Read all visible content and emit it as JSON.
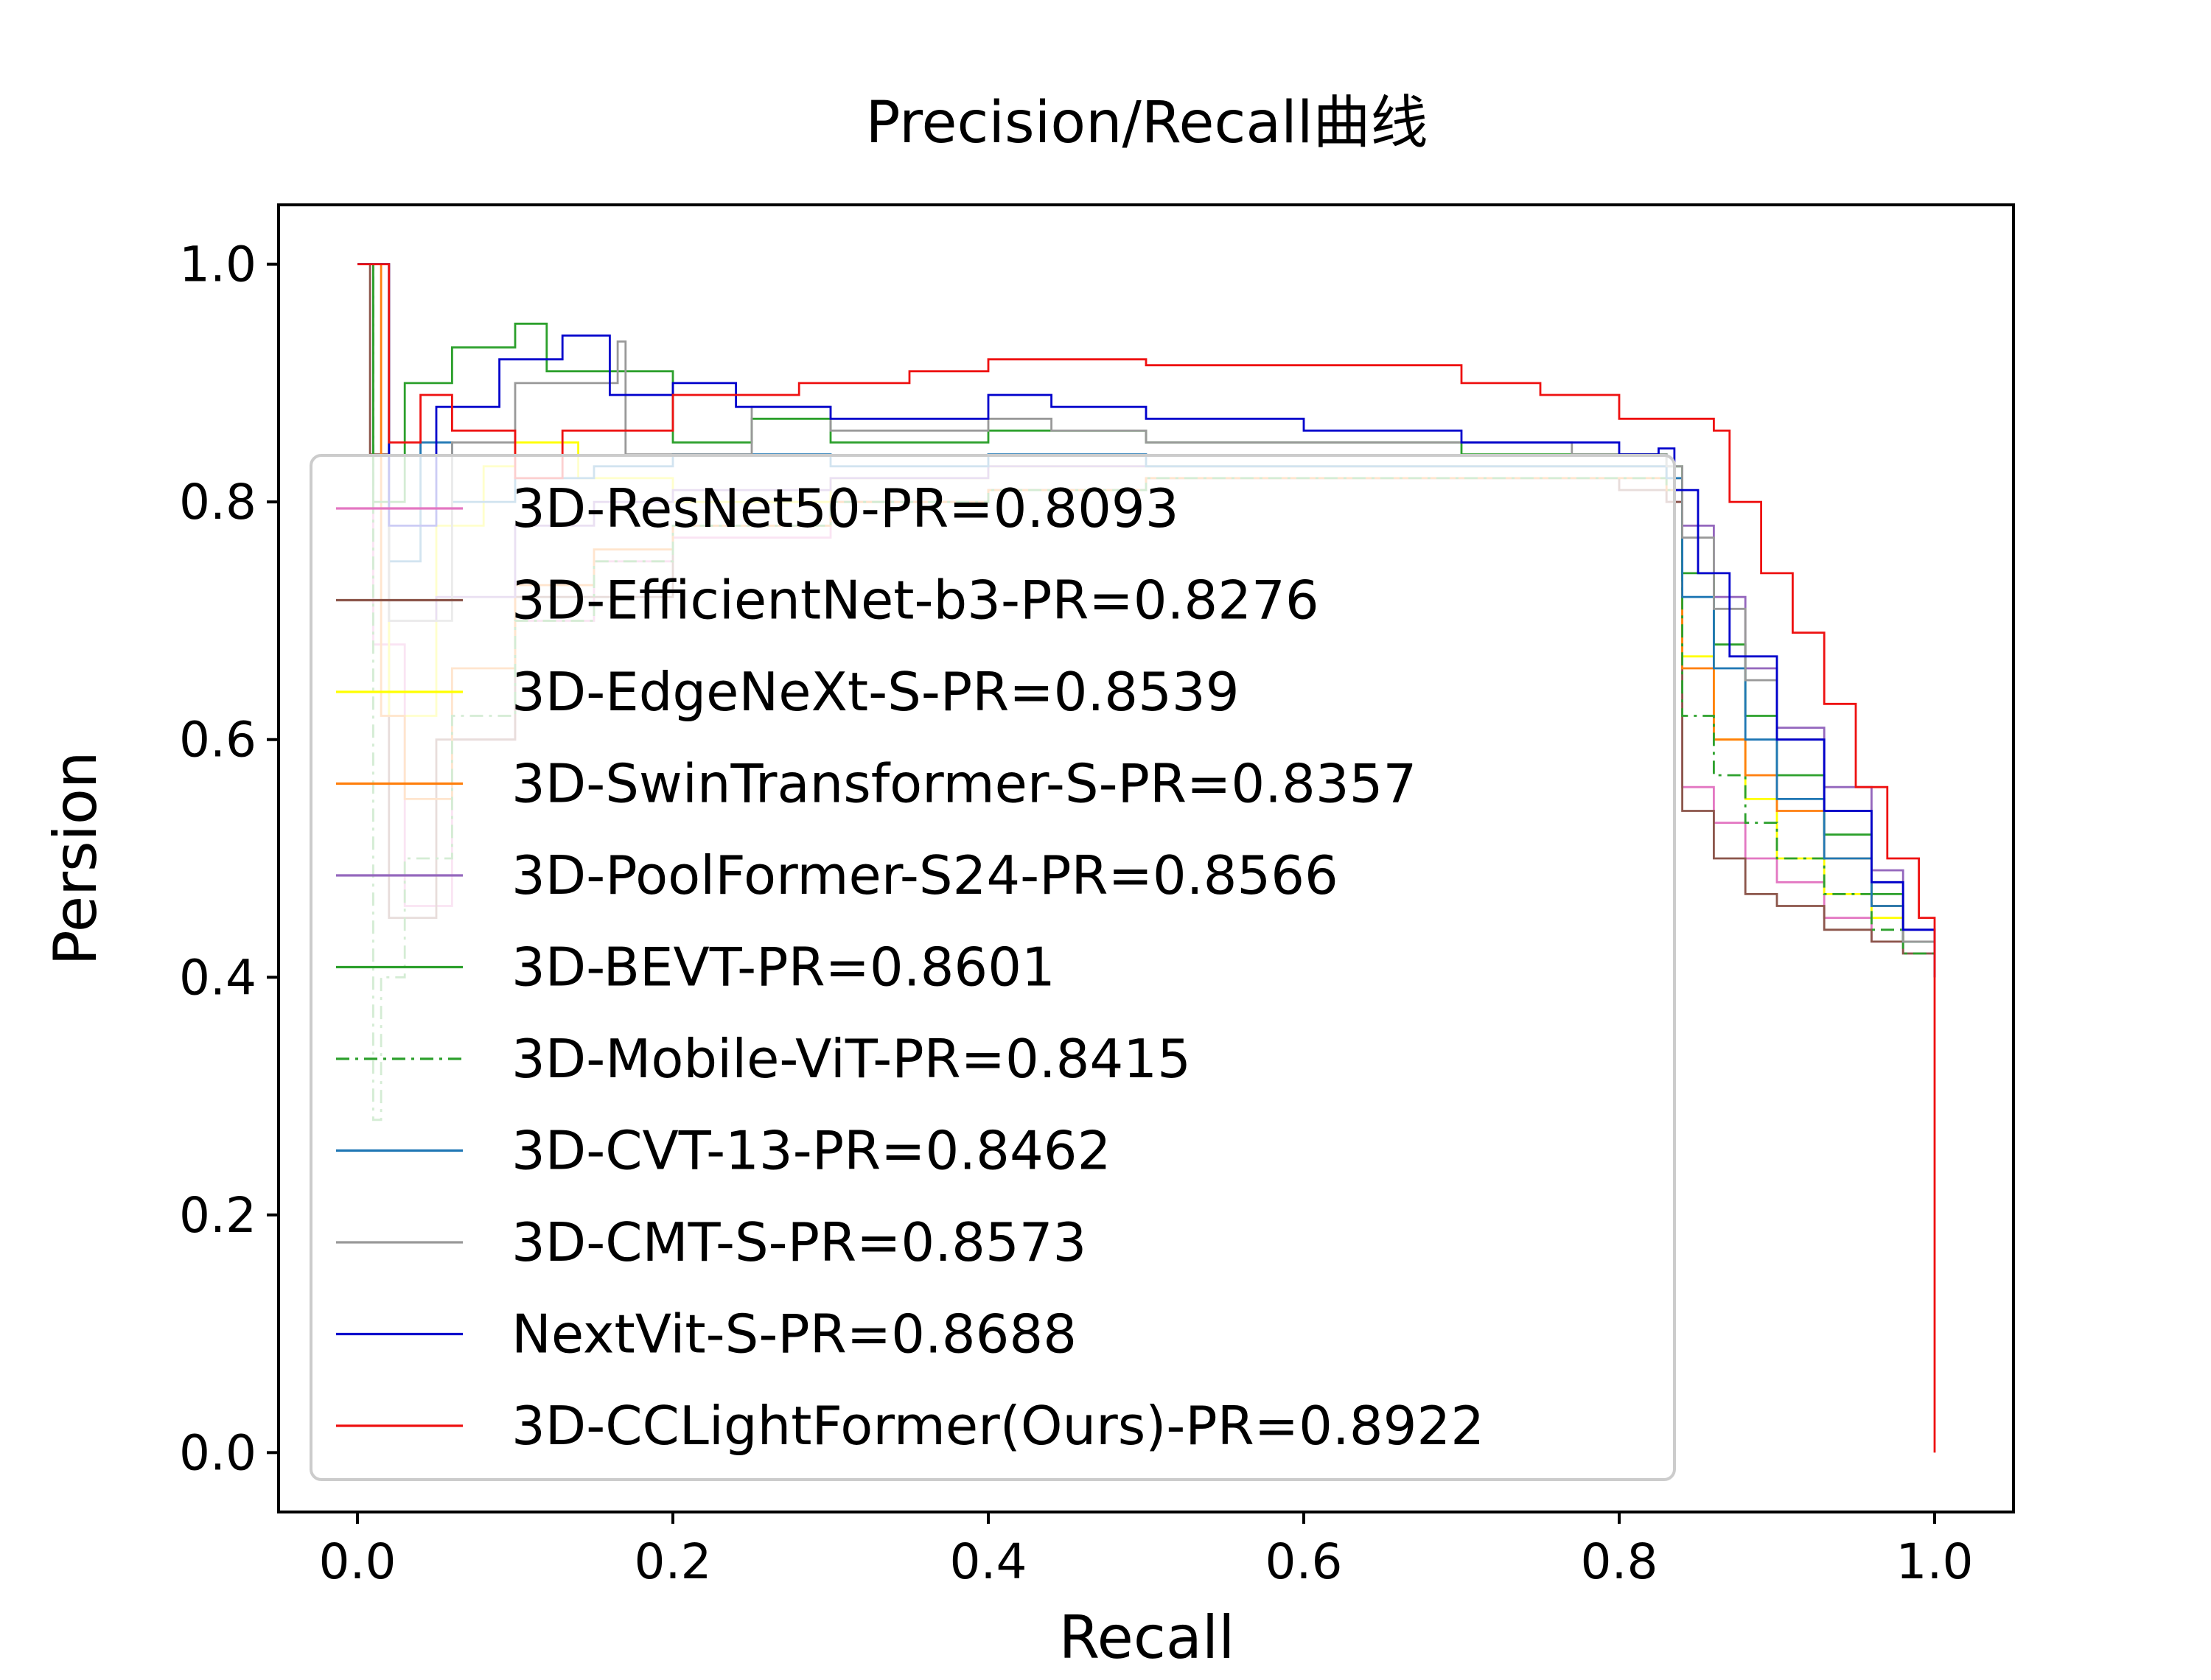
{
  "chart_data": {
    "type": "line",
    "title": "Precision/Recall曲线",
    "xlabel": "Recall",
    "ylabel": "Persion",
    "xlim": [
      -0.05,
      1.05
    ],
    "ylim": [
      -0.05,
      1.05
    ],
    "xticks": [
      0.0,
      0.2,
      0.4,
      0.6,
      0.8,
      1.0
    ],
    "yticks": [
      0.0,
      0.2,
      0.4,
      0.6,
      0.8,
      1.0
    ],
    "xtick_labels": [
      "0.0",
      "0.2",
      "0.4",
      "0.6",
      "0.8",
      "1.0"
    ],
    "ytick_labels": [
      "0.0",
      "0.2",
      "0.4",
      "0.6",
      "0.8",
      "1.0"
    ],
    "grid": false,
    "legend_position": "center-left",
    "series": [
      {
        "name": "3D-ResNet50-PR=0.8093",
        "color": "#e377c2",
        "dash": "solid",
        "x": [
          0.0,
          0.004,
          0.01,
          0.03,
          0.06,
          0.1,
          0.15,
          0.2,
          0.3,
          0.4,
          0.5,
          0.6,
          0.7,
          0.75,
          0.8,
          0.83,
          0.84,
          0.86,
          0.88,
          0.9,
          0.93,
          0.96,
          0.98,
          1.0
        ],
        "y": [
          1.0,
          1.0,
          0.68,
          0.46,
          0.6,
          0.7,
          0.75,
          0.77,
          0.8,
          0.81,
          0.82,
          0.82,
          0.82,
          0.82,
          0.81,
          0.8,
          0.56,
          0.53,
          0.5,
          0.48,
          0.45,
          0.43,
          0.42,
          0.4
        ]
      },
      {
        "name": "3D-EfficientNet-b3-PR=0.8276",
        "color": "#8c564b",
        "dash": "solid",
        "x": [
          0.0,
          0.002,
          0.008,
          0.02,
          0.05,
          0.1,
          0.2,
          0.3,
          0.4,
          0.5,
          0.6,
          0.7,
          0.75,
          0.8,
          0.83,
          0.84,
          0.86,
          0.88,
          0.9,
          0.93,
          0.96,
          0.98,
          1.0
        ],
        "y": [
          1.0,
          1.0,
          0.84,
          0.45,
          0.6,
          0.72,
          0.78,
          0.8,
          0.81,
          0.82,
          0.82,
          0.82,
          0.82,
          0.81,
          0.8,
          0.54,
          0.5,
          0.47,
          0.46,
          0.44,
          0.43,
          0.42,
          0.4
        ]
      },
      {
        "name": "3D-EdgeNeXt-S-PR=0.8539",
        "color": "#ffff00",
        "dash": "solid",
        "x": [
          0.0,
          0.01,
          0.02,
          0.05,
          0.08,
          0.1,
          0.14,
          0.2,
          0.3,
          0.4,
          0.5,
          0.6,
          0.7,
          0.8,
          0.83,
          0.84,
          0.86,
          0.88,
          0.9,
          0.93,
          0.96,
          0.98,
          1.0
        ],
        "y": [
          1.0,
          1.0,
          0.62,
          0.78,
          0.83,
          0.85,
          0.82,
          0.8,
          0.82,
          0.83,
          0.83,
          0.83,
          0.83,
          0.83,
          0.82,
          0.67,
          0.6,
          0.55,
          0.5,
          0.47,
          0.45,
          0.43,
          0.4
        ]
      },
      {
        "name": "3D-SwinTransformer-S-PR=0.8357",
        "color": "#ff7f0e",
        "dash": "solid",
        "x": [
          0.0,
          0.006,
          0.015,
          0.03,
          0.06,
          0.1,
          0.15,
          0.2,
          0.3,
          0.4,
          0.5,
          0.6,
          0.7,
          0.8,
          0.83,
          0.84,
          0.86,
          0.88,
          0.9,
          0.93,
          0.96,
          0.98,
          1.0
        ],
        "y": [
          1.0,
          1.0,
          0.62,
          0.55,
          0.66,
          0.73,
          0.76,
          0.78,
          0.8,
          0.81,
          0.82,
          0.82,
          0.82,
          0.82,
          0.81,
          0.66,
          0.6,
          0.57,
          0.54,
          0.5,
          0.46,
          0.43,
          0.4
        ]
      },
      {
        "name": "3D-PoolFormer-S24-PR=0.8566",
        "color": "#9467bd",
        "dash": "solid",
        "x": [
          0.0,
          0.01,
          0.02,
          0.05,
          0.1,
          0.15,
          0.2,
          0.3,
          0.4,
          0.5,
          0.6,
          0.7,
          0.8,
          0.83,
          0.84,
          0.86,
          0.88,
          0.9,
          0.93,
          0.96,
          0.98,
          1.0
        ],
        "y": [
          1.0,
          1.0,
          0.7,
          0.72,
          0.78,
          0.8,
          0.81,
          0.82,
          0.83,
          0.83,
          0.83,
          0.83,
          0.83,
          0.82,
          0.78,
          0.72,
          0.66,
          0.61,
          0.56,
          0.49,
          0.44,
          0.4
        ]
      },
      {
        "name": "3D-BEVT-PR=0.8601",
        "color": "#2ca02c",
        "dash": "solid",
        "x": [
          0.0,
          0.004,
          0.01,
          0.03,
          0.06,
          0.1,
          0.12,
          0.2,
          0.25,
          0.3,
          0.4,
          0.5,
          0.6,
          0.7,
          0.8,
          0.83,
          0.84,
          0.86,
          0.88,
          0.9,
          0.93,
          0.96,
          0.98,
          1.0
        ],
        "y": [
          1.0,
          1.0,
          0.8,
          0.9,
          0.93,
          0.95,
          0.91,
          0.85,
          0.87,
          0.85,
          0.86,
          0.85,
          0.85,
          0.84,
          0.84,
          0.83,
          0.74,
          0.68,
          0.62,
          0.57,
          0.52,
          0.47,
          0.43,
          0.4
        ]
      },
      {
        "name": "3D-Mobile-ViT-PR=0.8415",
        "color": "#2ca02c",
        "dash": "dashdot",
        "x": [
          0.0,
          0.005,
          0.01,
          0.015,
          0.03,
          0.06,
          0.1,
          0.15,
          0.2,
          0.3,
          0.4,
          0.5,
          0.6,
          0.7,
          0.8,
          0.83,
          0.84,
          0.86,
          0.88,
          0.9,
          0.93,
          0.96,
          0.98,
          1.0
        ],
        "y": [
          1.0,
          1.0,
          0.28,
          0.4,
          0.5,
          0.62,
          0.7,
          0.75,
          0.78,
          0.8,
          0.81,
          0.82,
          0.82,
          0.82,
          0.82,
          0.81,
          0.62,
          0.57,
          0.53,
          0.5,
          0.47,
          0.44,
          0.42,
          0.4
        ]
      },
      {
        "name": "3D-CVT-13-PR=0.8462",
        "color": "#1f77b4",
        "dash": "solid",
        "x": [
          0.0,
          0.01,
          0.02,
          0.04,
          0.06,
          0.1,
          0.15,
          0.2,
          0.3,
          0.4,
          0.5,
          0.6,
          0.7,
          0.8,
          0.83,
          0.84,
          0.86,
          0.88,
          0.9,
          0.93,
          0.96,
          0.98,
          1.0
        ],
        "y": [
          1.0,
          1.0,
          0.75,
          0.85,
          0.8,
          0.82,
          0.83,
          0.84,
          0.83,
          0.84,
          0.83,
          0.83,
          0.83,
          0.83,
          0.82,
          0.72,
          0.66,
          0.6,
          0.55,
          0.5,
          0.46,
          0.43,
          0.4
        ]
      },
      {
        "name": "3D-CMT-S-PR=0.8573",
        "color": "#999999",
        "dash": "solid",
        "x": [
          0.0,
          0.01,
          0.02,
          0.06,
          0.1,
          0.165,
          0.17,
          0.25,
          0.3,
          0.4,
          0.44,
          0.5,
          0.6,
          0.7,
          0.77,
          0.8,
          0.83,
          0.84,
          0.86,
          0.88,
          0.9,
          0.93,
          0.96,
          0.98,
          1.0
        ],
        "y": [
          1.0,
          1.0,
          0.7,
          0.85,
          0.9,
          0.935,
          0.84,
          0.88,
          0.86,
          0.87,
          0.86,
          0.85,
          0.85,
          0.85,
          0.84,
          0.84,
          0.83,
          0.77,
          0.71,
          0.65,
          0.6,
          0.54,
          0.48,
          0.43,
          0.4
        ]
      },
      {
        "name": "NextVit-S-PR=0.8688",
        "color": "#0000cc",
        "dash": "solid",
        "x": [
          0.0,
          0.01,
          0.02,
          0.05,
          0.09,
          0.13,
          0.16,
          0.2,
          0.24,
          0.3,
          0.4,
          0.44,
          0.5,
          0.6,
          0.7,
          0.8,
          0.825,
          0.835,
          0.85,
          0.87,
          0.9,
          0.93,
          0.96,
          0.98,
          1.0
        ],
        "y": [
          1.0,
          1.0,
          0.78,
          0.88,
          0.92,
          0.94,
          0.89,
          0.9,
          0.88,
          0.87,
          0.89,
          0.88,
          0.87,
          0.86,
          0.85,
          0.84,
          0.845,
          0.81,
          0.74,
          0.67,
          0.6,
          0.54,
          0.48,
          0.44,
          0.4
        ]
      },
      {
        "name": "3D-CCLightFormer(Ours)-PR=0.8922",
        "color": "#ee1111",
        "dash": "solid",
        "x": [
          0.0,
          0.01,
          0.02,
          0.04,
          0.06,
          0.1,
          0.13,
          0.2,
          0.28,
          0.35,
          0.4,
          0.5,
          0.6,
          0.7,
          0.75,
          0.8,
          0.83,
          0.86,
          0.87,
          0.89,
          0.91,
          0.93,
          0.95,
          0.97,
          0.99,
          1.0,
          1.0
        ],
        "y": [
          1.0,
          1.0,
          0.85,
          0.89,
          0.86,
          0.82,
          0.86,
          0.89,
          0.9,
          0.91,
          0.92,
          0.915,
          0.915,
          0.9,
          0.89,
          0.87,
          0.87,
          0.86,
          0.8,
          0.74,
          0.69,
          0.63,
          0.56,
          0.5,
          0.45,
          0.41,
          0.0
        ]
      }
    ]
  }
}
